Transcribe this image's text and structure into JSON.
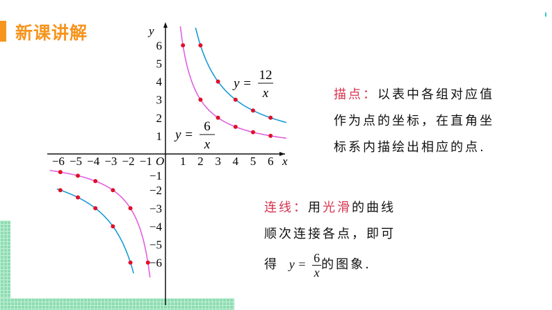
{
  "header": {
    "title": "新课讲解"
  },
  "colors": {
    "accent": "#f7941d",
    "curve_6": "#e060e0",
    "curve_12": "#1a9ad6",
    "points": "#e0102a",
    "highlight": "#d6334f"
  },
  "chart_data": {
    "type": "line",
    "xlabel": "x",
    "ylabel": "y",
    "origin_label": "O",
    "xlim": [
      -6,
      6
    ],
    "ylim": [
      -6,
      6
    ],
    "x_ticks": [
      "-6",
      "-5",
      "-4",
      "-3",
      "-2",
      "-1",
      "1",
      "2",
      "3",
      "4",
      "5",
      "6"
    ],
    "y_ticks": [
      "6",
      "5",
      "4",
      "3",
      "2",
      "1",
      "-1",
      "-2",
      "-3",
      "-4",
      "-5",
      "-6"
    ],
    "series": [
      {
        "name": "y=6/x",
        "label": {
          "lhs": "y =",
          "num": "6",
          "den": "x"
        },
        "k": 6,
        "points": [
          [
            1,
            6
          ],
          [
            2,
            3
          ],
          [
            3,
            2
          ],
          [
            4,
            1.5
          ],
          [
            5,
            1.2
          ],
          [
            6,
            1
          ],
          [
            -1,
            -6
          ],
          [
            -2,
            -3
          ],
          [
            -3,
            -2
          ],
          [
            -4,
            -1.5
          ],
          [
            -5,
            -1.2
          ],
          [
            -6,
            -1
          ]
        ]
      },
      {
        "name": "y=12/x",
        "label": {
          "lhs": "y =",
          "num": "12",
          "den": "x"
        },
        "k": 12,
        "points": [
          [
            2,
            6
          ],
          [
            3,
            4
          ],
          [
            4,
            3
          ],
          [
            5,
            2.4
          ],
          [
            6,
            2
          ],
          [
            -2,
            -6
          ],
          [
            -3,
            -4
          ],
          [
            -4,
            -3
          ],
          [
            -5,
            -2.4
          ],
          [
            -6,
            -2
          ]
        ]
      }
    ]
  },
  "text": {
    "plot_label": "描点：",
    "plot_body_1": "以表中各组对应值",
    "plot_body_2": "作为点的坐标，在直角坐",
    "plot_body_3": "标系内描绘出相应的点.",
    "connect_label": "连线：",
    "connect_1a": "用",
    "connect_smooth": "光滑",
    "connect_1b": "的曲线",
    "connect_2": "顺次连接各点，即可",
    "connect_3a": "得",
    "connect_3b": "的图象.",
    "formula": {
      "lhs": "y =",
      "num": "6",
      "den": "x"
    }
  }
}
